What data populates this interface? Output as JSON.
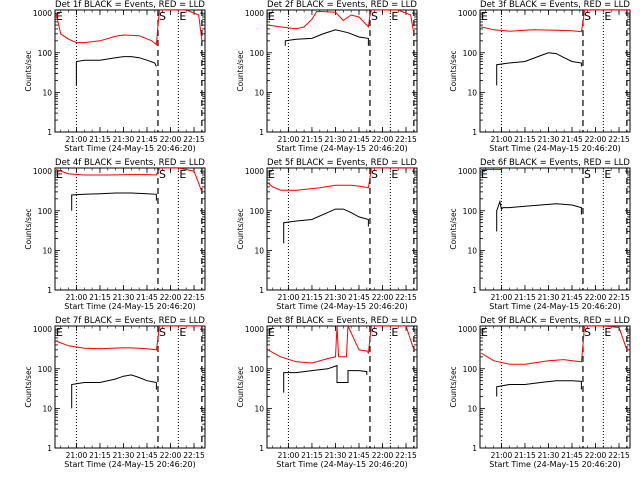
{
  "colors": {
    "events": "#000000",
    "lld": "#ff0000",
    "axes": "#000000",
    "background": "#ffffff"
  },
  "common": {
    "xlabel": "Start Time (24-May-15 20:46:20)",
    "ylabel": "Counts/sec",
    "xtick_labels": [
      "21:00",
      "21:15",
      "21:30",
      "21:45",
      "22:00",
      "22:15"
    ],
    "ytick_labels": [
      "1",
      "10",
      "100",
      "1000"
    ],
    "marker_S": "S",
    "marker_E": "E"
  },
  "chart_data": [
    {
      "type": "line",
      "title": "Det 1f BLACK = Events, RED = LLD",
      "xlim": [
        "20:46:20",
        "22:22"
      ],
      "ylim": [
        1,
        1200
      ],
      "y_scale": "log",
      "dotted_lines": [
        "21:00",
        "22:05"
      ],
      "dashed_lines": [
        "21:52",
        "22:20"
      ],
      "markers": [
        {
          "label": "S",
          "at": "21:52"
        },
        {
          "label": "E",
          "at": "22:05"
        }
      ],
      "series": [
        {
          "name": "BLACK = Events",
          "x": [
            "21:00",
            "21:00",
            "21:05",
            "21:15",
            "21:25",
            "21:30",
            "21:35",
            "21:40",
            "21:45",
            "21:50",
            "21:51"
          ],
          "y": [
            15,
            60,
            65,
            65,
            75,
            80,
            80,
            75,
            65,
            55,
            45
          ]
        },
        {
          "name": "RED = LLD",
          "x": [
            "20:47",
            "20:50",
            "20:55",
            "21:00",
            "21:05",
            "21:15",
            "21:25",
            "21:30",
            "21:40",
            "21:48",
            "21:51",
            "21:52",
            "21:53",
            "21:55",
            "22:10",
            "22:18",
            "22:20"
          ],
          "y": [
            1000,
            300,
            220,
            180,
            180,
            200,
            260,
            280,
            270,
            200,
            160,
            500,
            1200,
            1200,
            1200,
            900,
            200
          ]
        }
      ]
    },
    {
      "type": "line",
      "title": "Det 2f BLACK = Events, RED = LLD",
      "xlim": [
        "20:46:20",
        "22:22"
      ],
      "ylim": [
        1,
        1200
      ],
      "y_scale": "log",
      "dotted_lines": [
        "21:00",
        "22:05"
      ],
      "dashed_lines": [
        "21:52",
        "22:20"
      ],
      "markers": [
        {
          "label": "S",
          "at": "21:52"
        },
        {
          "label": "E",
          "at": "22:05"
        }
      ],
      "series": [
        {
          "name": "BLACK = Events",
          "x": [
            "20:58",
            "20:58",
            "21:05",
            "21:15",
            "21:22",
            "21:30",
            "21:38",
            "21:45",
            "21:51",
            "21:51"
          ],
          "y": [
            150,
            200,
            220,
            230,
            300,
            380,
            320,
            250,
            230,
            150
          ]
        },
        {
          "name": "RED = LLD",
          "x": [
            "20:47",
            "20:55",
            "21:05",
            "21:10",
            "21:15",
            "21:18",
            "21:20",
            "21:30",
            "21:35",
            "21:40",
            "21:45",
            "21:50",
            "21:51",
            "21:52",
            "21:53",
            "22:00",
            "22:10",
            "22:18",
            "22:20"
          ],
          "y": [
            500,
            450,
            400,
            450,
            700,
            1100,
            1100,
            1050,
            650,
            900,
            800,
            500,
            450,
            900,
            1200,
            1200,
            1200,
            900,
            300
          ]
        }
      ]
    },
    {
      "type": "line",
      "title": "Det 3f BLACK = Events, RED = LLD",
      "xlim": [
        "20:46:20",
        "22:22"
      ],
      "ylim": [
        1,
        1200
      ],
      "y_scale": "log",
      "dotted_lines": [
        "21:00",
        "22:05"
      ],
      "dashed_lines": [
        "21:52",
        "22:20"
      ],
      "markers": [
        {
          "label": "S",
          "at": "21:52"
        },
        {
          "label": "E",
          "at": "22:05"
        }
      ],
      "series": [
        {
          "name": "BLACK = Events",
          "x": [
            "20:57",
            "20:57",
            "21:05",
            "21:15",
            "21:25",
            "21:30",
            "21:35",
            "21:40",
            "21:45",
            "21:51",
            "21:51"
          ],
          "y": [
            15,
            50,
            55,
            60,
            85,
            100,
            95,
            75,
            60,
            55,
            45
          ]
        },
        {
          "name": "RED = LLD",
          "x": [
            "20:47",
            "20:55",
            "21:05",
            "21:20",
            "21:35",
            "21:45",
            "21:51",
            "21:52",
            "21:53",
            "22:00",
            "22:15",
            "22:22"
          ],
          "y": [
            450,
            380,
            350,
            380,
            370,
            360,
            340,
            600,
            1200,
            1200,
            1200,
            1200
          ]
        }
      ]
    },
    {
      "type": "line",
      "title": "Det 4f BLACK = Events, RED = LLD",
      "xlim": [
        "20:46:20",
        "22:22"
      ],
      "ylim": [
        1,
        1200
      ],
      "y_scale": "log",
      "dotted_lines": [
        "21:00",
        "22:05"
      ],
      "dashed_lines": [
        "21:52",
        "22:20"
      ],
      "markers": [
        {
          "label": "S",
          "at": "21:52"
        },
        {
          "label": "E",
          "at": "22:05"
        }
      ],
      "series": [
        {
          "name": "BLACK = Events",
          "x": [
            "20:57",
            "20:57",
            "21:05",
            "21:15",
            "21:25",
            "21:35",
            "21:45",
            "21:51",
            "21:51"
          ],
          "y": [
            100,
            250,
            260,
            270,
            280,
            280,
            270,
            260,
            180
          ]
        },
        {
          "name": "RED = LLD",
          "x": [
            "20:47",
            "20:50",
            "20:55",
            "21:05",
            "21:20",
            "21:35",
            "21:45",
            "21:51",
            "21:52",
            "21:53",
            "22:05",
            "22:15",
            "22:20"
          ],
          "y": [
            1100,
            1000,
            850,
            800,
            800,
            820,
            820,
            800,
            1000,
            1200,
            1200,
            1000,
            300
          ]
        }
      ]
    },
    {
      "type": "line",
      "title": "Det 5f BLACK = Events, RED = LLD",
      "xlim": [
        "20:46:20",
        "22:22"
      ],
      "ylim": [
        1,
        1200
      ],
      "y_scale": "log",
      "dotted_lines": [
        "21:00",
        "22:05"
      ],
      "dashed_lines": [
        "21:52",
        "22:20"
      ],
      "markers": [
        {
          "label": "S",
          "at": "21:52"
        },
        {
          "label": "E",
          "at": "22:05"
        }
      ],
      "series": [
        {
          "name": "BLACK = Events",
          "x": [
            "20:57",
            "20:57",
            "21:05",
            "21:15",
            "21:25",
            "21:30",
            "21:35",
            "21:40",
            "21:45",
            "21:51",
            "21:51"
          ],
          "y": [
            15,
            50,
            55,
            60,
            90,
            110,
            110,
            90,
            70,
            60,
            40
          ]
        },
        {
          "name": "RED = LLD",
          "x": [
            "20:47",
            "20:50",
            "20:55",
            "21:05",
            "21:20",
            "21:30",
            "21:40",
            "21:45",
            "21:51",
            "21:52",
            "21:53",
            "22:05",
            "22:20"
          ],
          "y": [
            500,
            400,
            330,
            330,
            380,
            440,
            440,
            420,
            380,
            700,
            1200,
            1200,
            1200
          ]
        }
      ]
    },
    {
      "type": "line",
      "title": "Det 6f BLACK = Events, RED = LLD",
      "xlim": [
        "20:46:20",
        "22:22"
      ],
      "ylim": [
        1,
        1200
      ],
      "y_scale": "log",
      "dotted_lines": [
        "21:00",
        "22:05"
      ],
      "dashed_lines": [
        "21:52",
        "22:20"
      ],
      "markers": [
        {
          "label": "S",
          "at": "21:52"
        },
        {
          "label": "E",
          "at": "22:05"
        }
      ],
      "series": [
        {
          "name": "BLACK = Events",
          "x": [
            "20:57",
            "20:57",
            "20:59",
            "21:00",
            "21:01",
            "21:05",
            "21:15",
            "21:25",
            "21:35",
            "21:45",
            "21:51",
            "21:51"
          ],
          "y": [
            30,
            100,
            170,
            110,
            120,
            120,
            130,
            140,
            150,
            140,
            120,
            80
          ]
        },
        {
          "name": "RED = LLD",
          "x": [
            "20:47",
            "21:00"
          ],
          "y": [
            1100,
            1100
          ]
        }
      ]
    },
    {
      "type": "line",
      "title": "Det 7f BLACK = Events, RED = LLD",
      "xlim": [
        "20:46:20",
        "22:22"
      ],
      "ylim": [
        1,
        1200
      ],
      "y_scale": "log",
      "dotted_lines": [
        "21:00",
        "22:05"
      ],
      "dashed_lines": [
        "21:52",
        "22:20"
      ],
      "markers": [
        {
          "label": "S",
          "at": "21:52"
        },
        {
          "label": "E",
          "at": "22:05"
        }
      ],
      "series": [
        {
          "name": "BLACK = Events",
          "x": [
            "20:57",
            "20:57",
            "21:05",
            "21:15",
            "21:25",
            "21:30",
            "21:35",
            "21:40",
            "21:45",
            "21:51",
            "21:51"
          ],
          "y": [
            10,
            40,
            45,
            45,
            55,
            65,
            70,
            60,
            50,
            45,
            30
          ]
        },
        {
          "name": "RED = LLD",
          "x": [
            "20:47",
            "20:55",
            "21:05",
            "21:15",
            "21:30",
            "21:40",
            "21:45",
            "21:51",
            "21:52",
            "21:53",
            "22:05",
            "22:20"
          ],
          "y": [
            500,
            380,
            330,
            320,
            340,
            330,
            320,
            300,
            600,
            1200,
            1200,
            1200
          ]
        }
      ]
    },
    {
      "type": "line",
      "title": "Det 8f BLACK = Events, RED = LLD",
      "xlim": [
        "20:46:20",
        "22:22"
      ],
      "ylim": [
        1,
        1200
      ],
      "y_scale": "log",
      "dotted_lines": [
        "21:00",
        "22:05"
      ],
      "dashed_lines": [
        "21:52",
        "22:20"
      ],
      "markers": [
        {
          "label": "S",
          "at": "21:52"
        },
        {
          "label": "E",
          "at": "22:05"
        }
      ],
      "series": [
        {
          "name": "BLACK = Events",
          "x": [
            "20:57",
            "20:57",
            "21:05",
            "21:15",
            "21:25",
            "21:31",
            "21:31",
            "21:38",
            "21:38",
            "21:45",
            "21:50",
            "21:50"
          ],
          "y": [
            25,
            80,
            80,
            90,
            100,
            120,
            45,
            45,
            90,
            90,
            85,
            70
          ]
        },
        {
          "name": "RED = LLD",
          "x": [
            "20:47",
            "20:55",
            "21:05",
            "21:15",
            "21:25",
            "21:30",
            "21:31",
            "21:32",
            "21:37",
            "21:38",
            "21:45",
            "21:50",
            "21:51",
            "21:52",
            "21:53",
            "22:05",
            "22:15",
            "22:20"
          ],
          "y": [
            300,
            200,
            150,
            140,
            180,
            200,
            1200,
            200,
            200,
            1200,
            300,
            280,
            250,
            600,
            1200,
            1200,
            1200,
            300
          ]
        }
      ]
    },
    {
      "type": "line",
      "title": "Det 9f BLACK = Events, RED = LLD",
      "xlim": [
        "20:46:20",
        "22:22"
      ],
      "ylim": [
        1,
        1200
      ],
      "y_scale": "log",
      "dotted_lines": [
        "21:00",
        "22:05"
      ],
      "dashed_lines": [
        "21:52",
        "22:20"
      ],
      "markers": [
        {
          "label": "S",
          "at": "21:52"
        },
        {
          "label": "E",
          "at": "22:05"
        }
      ],
      "series": [
        {
          "name": "BLACK = Events",
          "x": [
            "20:57",
            "20:57",
            "21:05",
            "21:15",
            "21:25",
            "21:35",
            "21:45",
            "21:51",
            "21:51"
          ],
          "y": [
            20,
            35,
            40,
            40,
            45,
            50,
            50,
            48,
            30
          ]
        },
        {
          "name": "RED = LLD",
          "x": [
            "20:47",
            "20:55",
            "21:05",
            "21:15",
            "21:30",
            "21:40",
            "21:45",
            "21:51",
            "21:52",
            "21:53",
            "22:05",
            "22:15",
            "22:20"
          ],
          "y": [
            250,
            160,
            130,
            130,
            160,
            170,
            160,
            150,
            400,
            1200,
            1200,
            1100,
            300
          ]
        }
      ]
    }
  ]
}
